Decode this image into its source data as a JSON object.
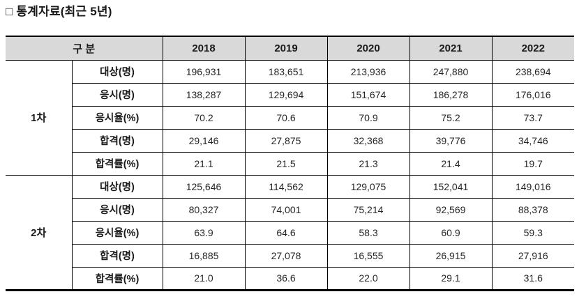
{
  "title": "□ 통계자료(최근 5년)",
  "colors": {
    "header_bg": "#d9d9d9",
    "border": "#000000",
    "label_text": "#1a1a1a",
    "number_text": "#262626"
  },
  "table": {
    "header": {
      "group_label": "구 분",
      "years": [
        "2018",
        "2019",
        "2020",
        "2021",
        "2022"
      ]
    },
    "sections": [
      {
        "label": "1차",
        "rows": [
          {
            "label": "대상(명)",
            "values": [
              "196,931",
              "183,651",
              "213,936",
              "247,880",
              "238,694"
            ]
          },
          {
            "label": "응시(명)",
            "values": [
              "138,287",
              "129,694",
              "151,674",
              "186,278",
              "176,016"
            ]
          },
          {
            "label": "응시율(%)",
            "values": [
              "70.2",
              "70.6",
              "70.9",
              "75.2",
              "73.7"
            ]
          },
          {
            "label": "합격(명)",
            "values": [
              "29,146",
              "27,875",
              "32,368",
              "39,776",
              "34,746"
            ]
          },
          {
            "label": "합격률(%)",
            "values": [
              "21.1",
              "21.5",
              "21.3",
              "21.4",
              "19.7"
            ]
          }
        ]
      },
      {
        "label": "2차",
        "rows": [
          {
            "label": "대상(명)",
            "values": [
              "125,646",
              "114,562",
              "129,075",
              "152,041",
              "149,016"
            ]
          },
          {
            "label": "응시(명)",
            "values": [
              "80,327",
              "74,001",
              "75,214",
              "92,569",
              "88,378"
            ]
          },
          {
            "label": "응시율(%)",
            "values": [
              "63.9",
              "64.6",
              "58.3",
              "60.9",
              "59.3"
            ]
          },
          {
            "label": "합격(명)",
            "values": [
              "16,885",
              "27,078",
              "16,555",
              "26,915",
              "27,916"
            ]
          },
          {
            "label": "합격률(%)",
            "values": [
              "21.0",
              "36.6",
              "22.0",
              "29.1",
              "31.6"
            ]
          }
        ]
      }
    ]
  }
}
